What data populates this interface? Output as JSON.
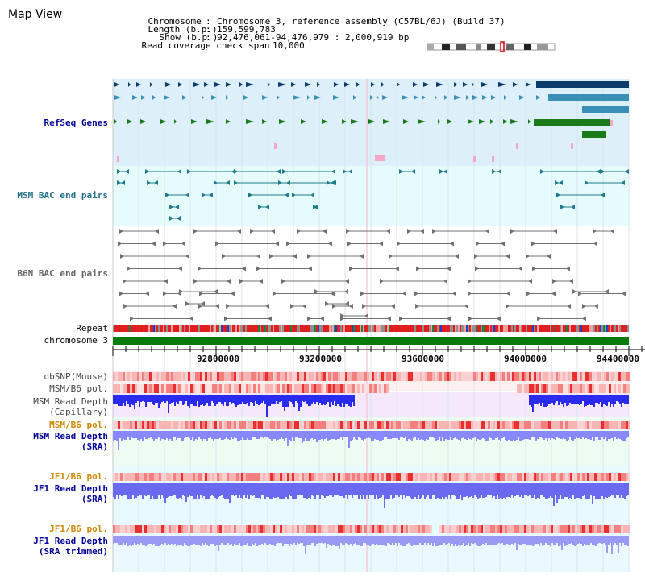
{
  "header": {
    "title": "Map View",
    "rows": [
      {
        "label": "Chromosome",
        "value": "Chromosome 3, reference assembly (C57BL/6J) (Build 37)"
      },
      {
        "label": "Length (b.p.)",
        "value": "159,599,783"
      },
      {
        "label": "Show (b.p.)",
        "value": "92,476,061-94,476,979 : 2,000,919 bp"
      },
      {
        "label": "Read coverage check span",
        "value": "10,000"
      }
    ]
  },
  "tracks": {
    "refseq": "RefSeq Genes",
    "msm_bac": "MSM BAC end pairs",
    "b6n_bac": "B6N BAC end pairs",
    "repeat": "Repeat",
    "chromosome": "chromosome 3",
    "dbsnp": "dbSNP(Mouse)",
    "msm_b6_pol_1": "MSM/B6 pol.",
    "msm_depth_cap_1": "MSM Read Depth",
    "msm_depth_cap_2": "(Capillary)",
    "msm_b6_pol_2": "MSM/B6 pol.",
    "msm_depth_sra_1": "MSM Read Depth",
    "msm_depth_sra_2": "(SRA)",
    "jf1_b6_pol_1": "JF1/B6 pol.",
    "jf1_depth_sra_1": "JF1 Read Depth",
    "jf1_depth_sra_2": "(SRA)",
    "jf1_b6_pol_2": "JF1/B6 pol.",
    "jf1_depth_trim_1": "JF1 Read Depth",
    "jf1_depth_trim_2": "(SRA trimmed)"
  },
  "axis": {
    "ticks": [
      "92800000",
      "93200000",
      "93600000",
      "94000000",
      "94400000"
    ]
  },
  "colors": {
    "refseq_bg": "#ddf0fa",
    "bac_bg": "#e6fbfb",
    "gene_dark": "#0b3c6b",
    "gene_mid": "#3a8fb7",
    "gene_green": "#1a7a1a",
    "bac_teal": "#1f7a8c",
    "bac_gray": "#707070",
    "chrom_green": "#0a7a0a",
    "depth_blue": "#2b2bf0",
    "depth_light": "#8888ff",
    "snp_red": "#f04040"
  }
}
